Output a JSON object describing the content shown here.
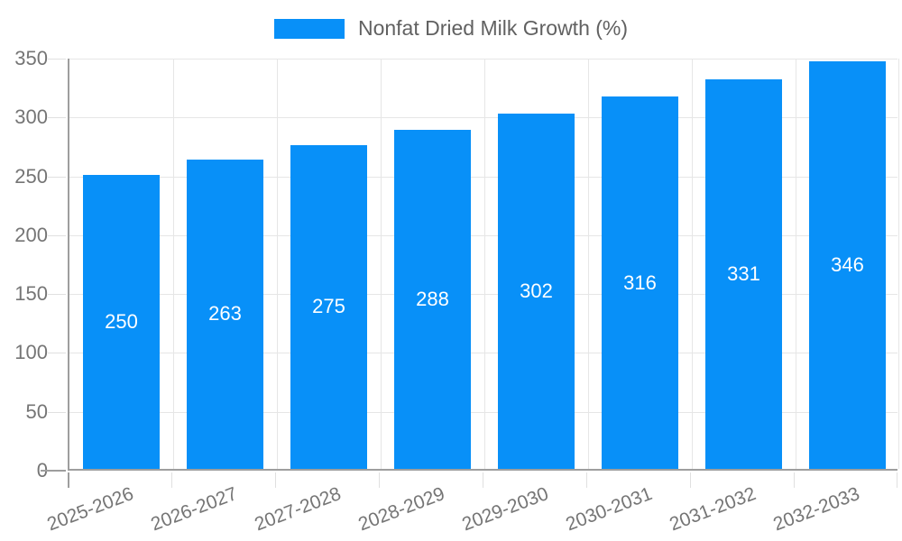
{
  "legend": {
    "label": "Nonfat Dried Milk Growth (%)"
  },
  "chart_data": {
    "type": "bar",
    "title": "",
    "xlabel": "",
    "ylabel": "",
    "series_name": "Nonfat Dried Milk Growth (%)",
    "categories": [
      "2025-2026",
      "2026-2027",
      "2027-2028",
      "2028-2029",
      "2029-2030",
      "2030-2031",
      "2031-2032",
      "2032-2033"
    ],
    "values": [
      250,
      263,
      275,
      288,
      302,
      316,
      331,
      346
    ],
    "value_labels": [
      "250",
      "263",
      "275",
      "288",
      "302",
      "316",
      "331",
      "346"
    ],
    "ylim": [
      0,
      350
    ],
    "ytick_step": 50,
    "grid": true,
    "legend_position": "top",
    "bar_color": "#0890f8",
    "value_label_color": "#ffffff",
    "axis_line_color": "#9e9e9e",
    "gridline_color": "#e6e6e6",
    "tick_label_color": "#757575",
    "legend_text_color": "#616161"
  }
}
